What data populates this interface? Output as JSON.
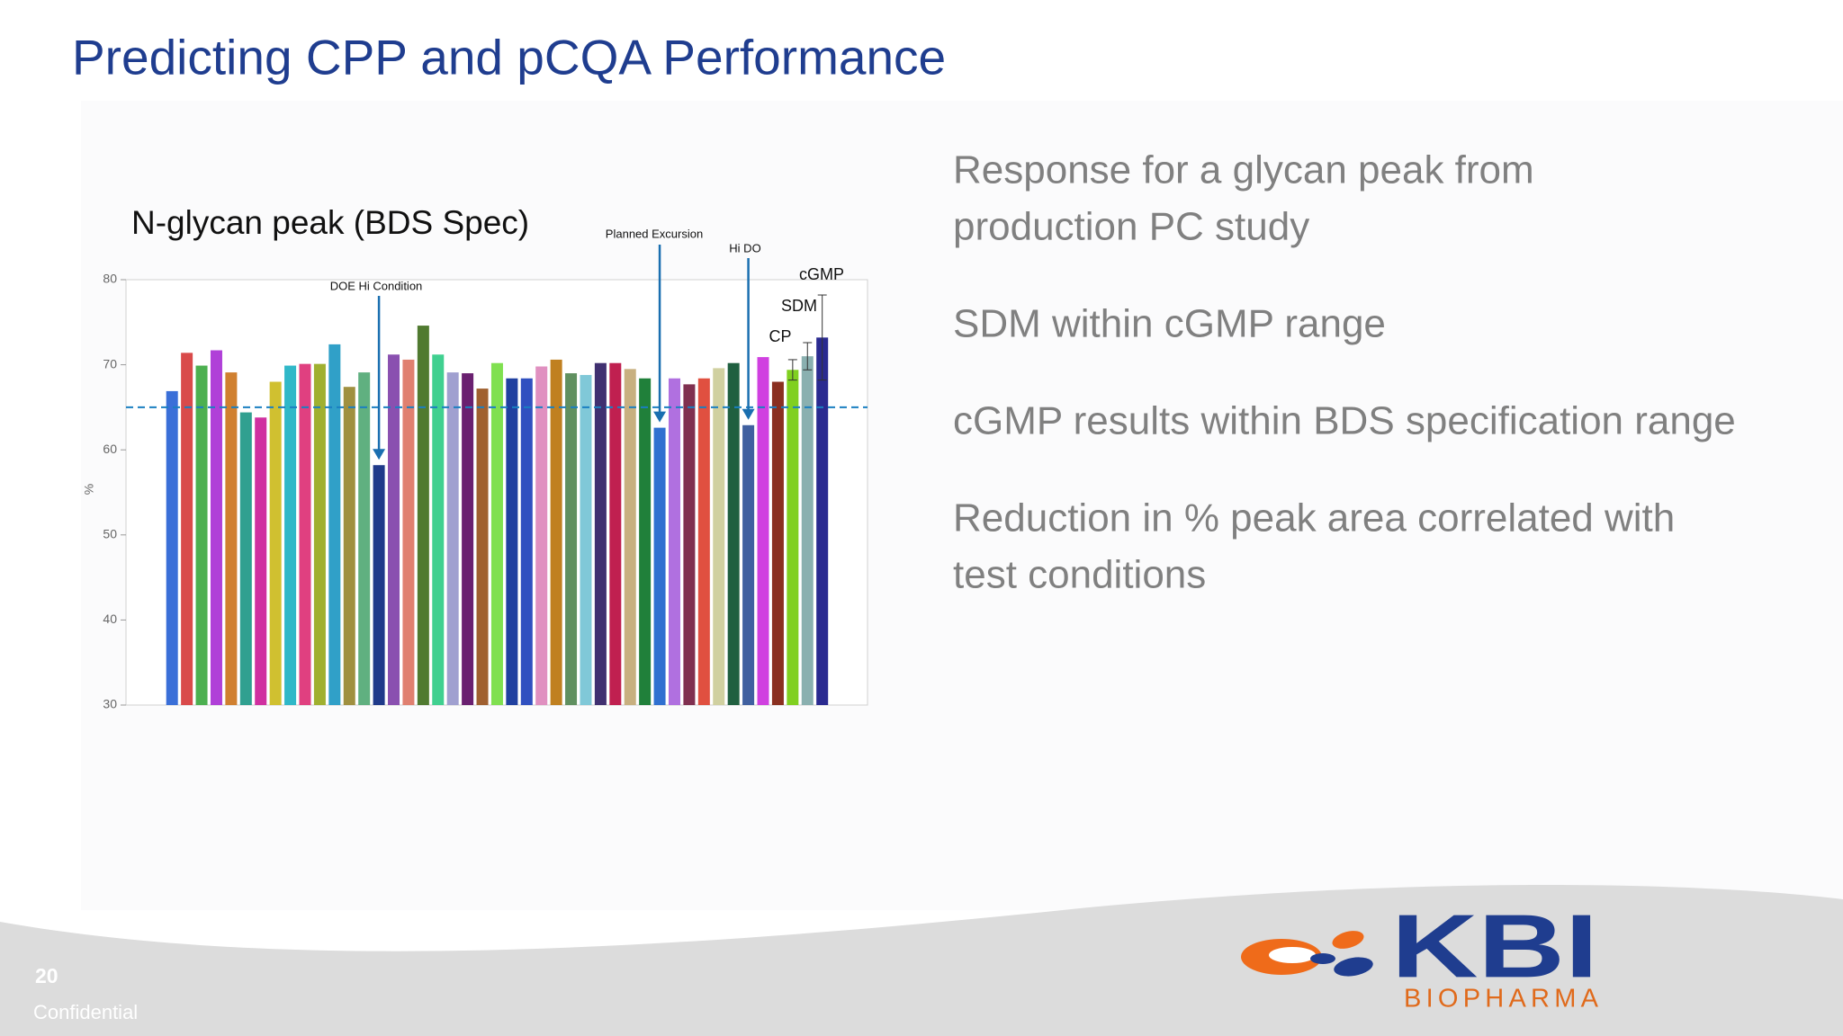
{
  "header": {
    "title": "Predicting CPP and pCQA Performance"
  },
  "chart_data": {
    "type": "bar",
    "title": "N-glycan peak (BDS Spec)",
    "y_label": "%",
    "categories": [
      null,
      null,
      null,
      null,
      null,
      null,
      null,
      null,
      null,
      null,
      null,
      null,
      null,
      null,
      null,
      null,
      null,
      null,
      null,
      null,
      null,
      null,
      null,
      null,
      null,
      null,
      null,
      null,
      null,
      null,
      null,
      null,
      null,
      null,
      null,
      null,
      null,
      null,
      null,
      null,
      null,
      null,
      null,
      null,
      null
    ],
    "values": [
      66.9,
      71.4,
      69.9,
      71.7,
      69.1,
      64.4,
      63.8,
      68.0,
      69.9,
      70.1,
      70.1,
      72.4,
      67.4,
      69.1,
      58.2,
      71.2,
      70.6,
      74.6,
      71.2,
      69.1,
      69.0,
      67.2,
      70.2,
      68.4,
      68.4,
      69.8,
      70.6,
      69.0,
      68.8,
      70.2,
      70.2,
      69.5,
      68.4,
      62.6,
      68.4,
      67.7,
      68.4,
      69.6,
      70.2,
      62.9,
      70.9,
      68.0,
      69.4,
      71.0,
      73.2
    ],
    "errors": [
      null,
      null,
      null,
      null,
      null,
      null,
      null,
      null,
      null,
      null,
      null,
      null,
      null,
      null,
      null,
      null,
      null,
      null,
      null,
      null,
      null,
      null,
      null,
      null,
      null,
      null,
      null,
      null,
      null,
      null,
      null,
      null,
      null,
      null,
      null,
      null,
      null,
      null,
      null,
      null,
      null,
      null,
      1.2,
      1.6,
      5.0
    ],
    "colors": [
      "#3a6fd8",
      "#d94a4a",
      "#4cb050",
      "#b040d8",
      "#d08030",
      "#30a090",
      "#d030a0",
      "#d0c030",
      "#30b8c8",
      "#e04080",
      "#a0b030",
      "#30a0c8",
      "#a09040",
      "#60b080",
      "#1f3a8a",
      "#8a50b0",
      "#e08070",
      "#507a30",
      "#40d090",
      "#a0a0d0",
      "#6a2070",
      "#a06030",
      "#80e050",
      "#2040a0",
      "#3050c0",
      "#e090c0",
      "#c08020",
      "#609060",
      "#80c8d8",
      "#403070",
      "#c02050",
      "#c8b080",
      "#20803a",
      "#3070d0",
      "#b070e0",
      "#803050",
      "#e05040",
      "#d0d0a0",
      "#206040",
      "#4060a0",
      "#d040e0",
      "#8a3020",
      "#80d020",
      "#8ab0b0",
      "#2a2a90"
    ],
    "ylim": [
      30,
      80
    ],
    "yticks": [
      30,
      40,
      50,
      60,
      70,
      80
    ],
    "grid": false,
    "reference_line": {
      "value": 65,
      "color": "#1a7fc1",
      "style": "dashed"
    },
    "annotations": [
      "DOE Hi Condition",
      "Planned Excursion",
      "Hi DO",
      "CP",
      "SDM",
      "cGMP"
    ]
  },
  "bullets": [
    [
      "Response for a glycan peak from",
      "production PC study"
    ],
    [
      "SDM within cGMP range"
    ],
    [
      "cGMP results within BDS specification range"
    ],
    [
      "Reduction in % peak area correlated with",
      "test conditions"
    ]
  ],
  "footer": {
    "page_number": "20",
    "confidential": "Confidential"
  },
  "logo": {
    "name": "KBI",
    "tagline": "BIOPHARMA"
  }
}
